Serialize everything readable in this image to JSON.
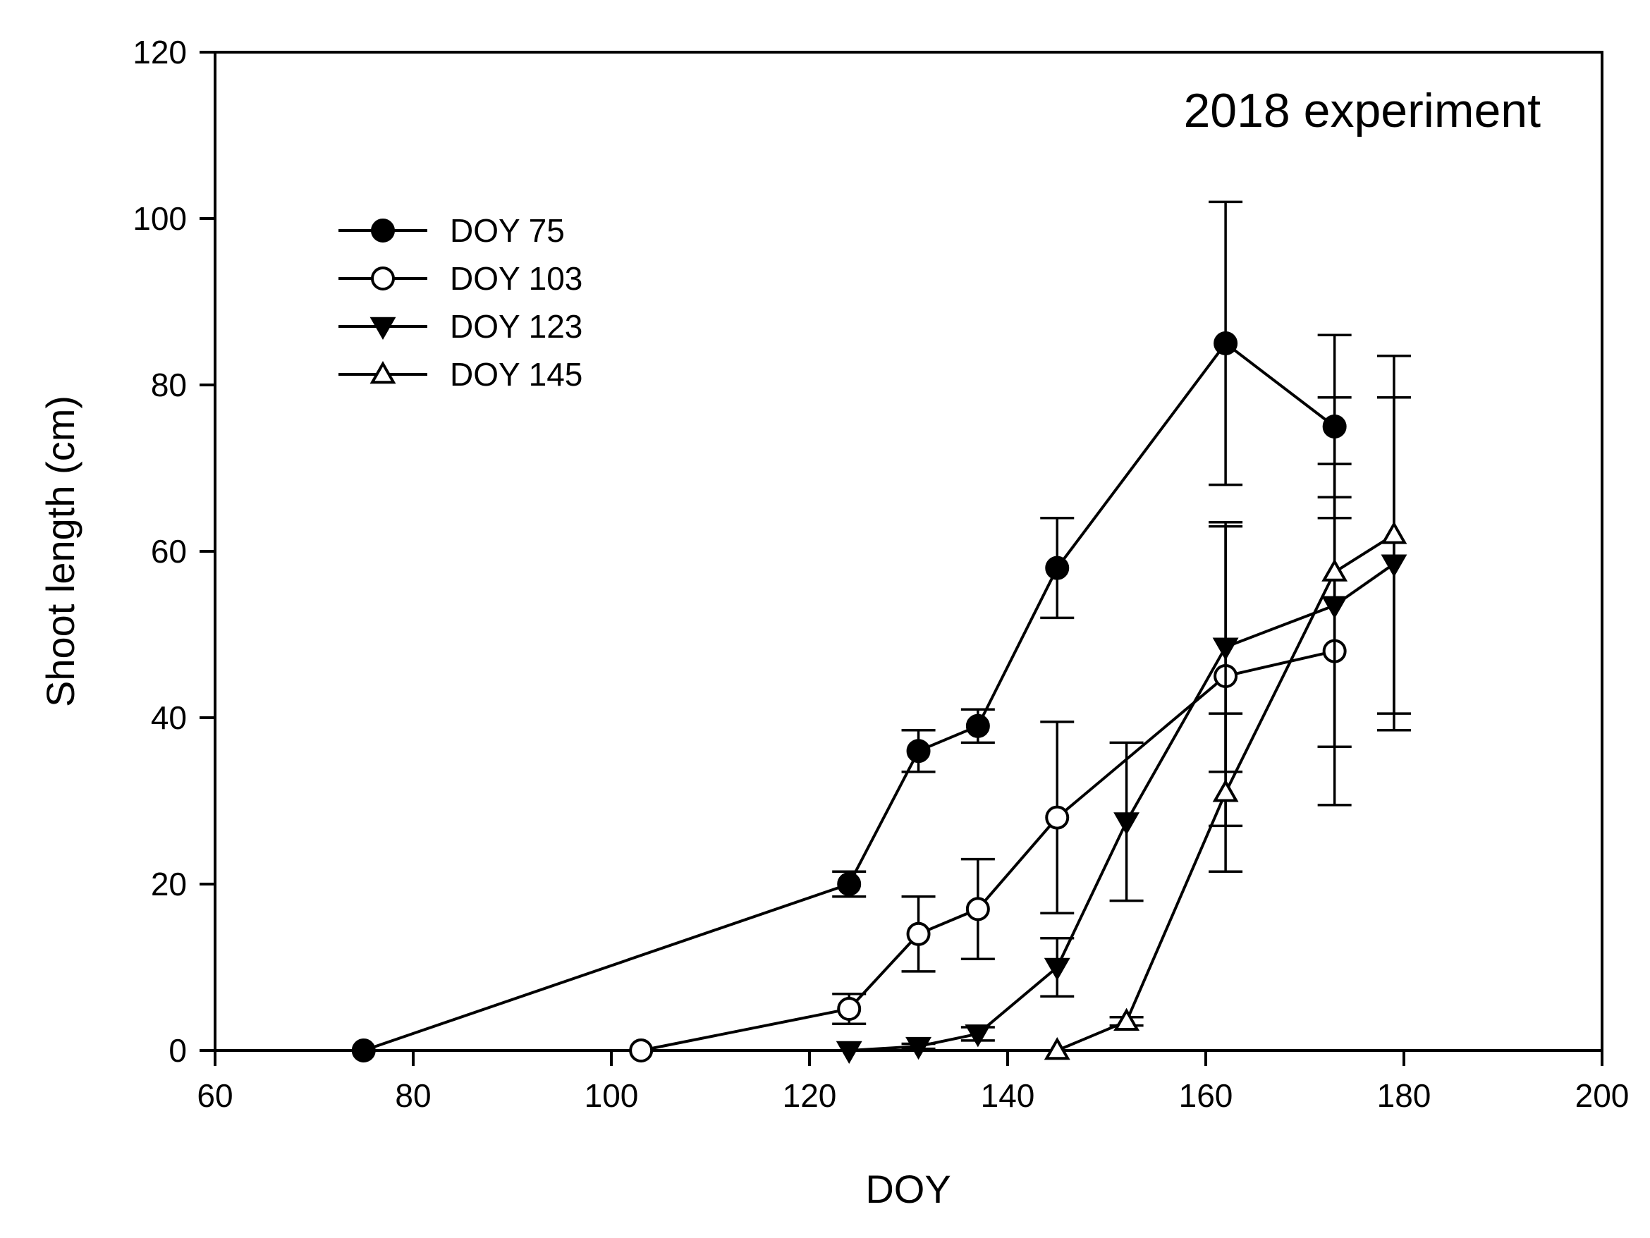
{
  "chart_data": {
    "type": "line",
    "title": "",
    "annotation": "2018 experiment",
    "xlabel": "DOY",
    "ylabel": "Shoot length (cm)",
    "xlim": [
      60,
      200
    ],
    "ylim": [
      0,
      120
    ],
    "xticks": [
      60,
      80,
      100,
      120,
      140,
      160,
      180,
      200
    ],
    "yticks": [
      0,
      20,
      40,
      60,
      80,
      100,
      120
    ],
    "grid": false,
    "legend_position": "upper-left",
    "series": [
      {
        "name": "DOY 75",
        "marker": "circle",
        "filled": true,
        "x": [
          75,
          124,
          131,
          137,
          145,
          162,
          173
        ],
        "y": [
          0,
          20,
          36,
          39,
          58,
          85,
          75
        ],
        "err": [
          0,
          1.5,
          2.5,
          2,
          6,
          17,
          11
        ]
      },
      {
        "name": "DOY 103",
        "marker": "circle",
        "filled": false,
        "x": [
          103,
          124,
          131,
          137,
          145,
          162,
          173
        ],
        "y": [
          0,
          5,
          14,
          17,
          28,
          45,
          48
        ],
        "err": [
          0,
          1.8,
          4.5,
          6,
          11.5,
          18,
          18.5
        ]
      },
      {
        "name": "DOY 123",
        "marker": "triangle-down",
        "filled": true,
        "x": [
          124,
          131,
          137,
          145,
          152,
          162,
          173,
          179
        ],
        "y": [
          0,
          0.5,
          2,
          10,
          27.5,
          48.5,
          53.5,
          58.5
        ],
        "err": [
          0,
          0.3,
          0.8,
          3.5,
          9.5,
          15,
          17,
          20
        ]
      },
      {
        "name": "DOY 145",
        "marker": "triangle-up",
        "filled": false,
        "x": [
          145,
          152,
          162,
          173,
          179
        ],
        "y": [
          0,
          3.5,
          31,
          57.5,
          62
        ],
        "err": [
          0,
          0.5,
          9.5,
          21,
          21.5
        ]
      }
    ]
  }
}
